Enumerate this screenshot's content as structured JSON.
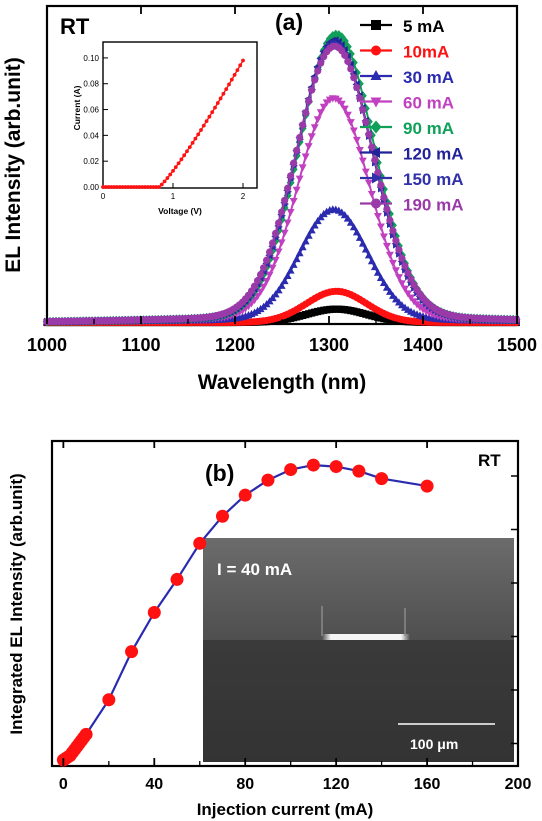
{
  "chart_data": [
    {
      "type": "line",
      "panel_label": "(a)",
      "corner_label": "RT",
      "xlabel": "Wavelength (nm)",
      "ylabel": "EL Intensity (arb.unit)",
      "xlim": [
        1000,
        1500
      ],
      "x_ticks": [
        "1000",
        "1100",
        "1200",
        "1300",
        "1400",
        "1500"
      ],
      "y_ticks_labeled": false,
      "ylim": [
        0,
        1.07
      ],
      "legend_position": "top-right",
      "series": [
        {
          "name": "5 mA",
          "color": "#000000",
          "marker": "square",
          "peak": 0.045,
          "center": 1308,
          "sigma": 32,
          "wing": 0.0
        },
        {
          "name": "10mA",
          "color": "#ff1111",
          "marker": "circle",
          "peak": 0.105,
          "center": 1308,
          "sigma": 32,
          "wing": 0.0
        },
        {
          "name": "30 mA",
          "color": "#2b2bb0",
          "marker": "triangle-up",
          "peak": 0.37,
          "center": 1305,
          "sigma": 36,
          "wing": 0.01
        },
        {
          "name": "60 mA",
          "color": "#c040c0",
          "marker": "triangle-down",
          "peak": 0.74,
          "center": 1305,
          "sigma": 38,
          "wing": 0.015
        },
        {
          "name": "90 mA",
          "color": "#11a05a",
          "marker": "diamond",
          "peak": 0.95,
          "center": 1308,
          "sigma": 40,
          "wing": 0.02
        },
        {
          "name": "120 mA",
          "color": "#22229a",
          "marker": "triangle-left",
          "peak": 0.93,
          "center": 1306,
          "sigma": 40,
          "wing": 0.02
        },
        {
          "name": "150 mA",
          "color": "#3030a8",
          "marker": "triangle-right",
          "peak": 0.92,
          "center": 1306,
          "sigma": 40,
          "wing": 0.02
        },
        {
          "name": "190 mA",
          "color": "#9a3aa8",
          "marker": "circle",
          "peak": 0.91,
          "center": 1306,
          "sigma": 41,
          "wing": 0.02
        }
      ],
      "inset": {
        "type": "line",
        "xlabel": "Voltage (V)",
        "ylabel": "Current (A)",
        "xlim": [
          0,
          2.2
        ],
        "ylim": [
          0,
          0.11
        ],
        "x_ticks": [
          "0",
          "1",
          "2"
        ],
        "y_ticks": [
          "0.00",
          "0.02",
          "0.04",
          "0.06",
          "0.08",
          "0.10"
        ],
        "color": "#ff1111",
        "turn_on_voltage": 0.8,
        "end_point": [
          2.0,
          0.098
        ]
      }
    },
    {
      "type": "line",
      "panel_label": "(b)",
      "corner_label": "RT",
      "xlabel": "Injection current (mA)",
      "ylabel": "Integrated EL Intensity (arb.unit)",
      "xlim": [
        -5,
        200
      ],
      "x_ticks": [
        "0",
        "40",
        "80",
        "120",
        "160",
        "200"
      ],
      "y_ticks_labeled": false,
      "ylim": [
        0,
        1.08
      ],
      "line_color": "#2b2bb0",
      "marker_color": "#ff1111",
      "x": [
        0,
        1,
        2,
        3,
        4,
        5,
        6,
        7,
        8,
        9,
        10,
        20,
        30,
        40,
        50,
        60,
        70,
        80,
        90,
        100,
        110,
        120,
        130,
        140,
        160
      ],
      "y": [
        0.02,
        0.025,
        0.03,
        0.035,
        0.045,
        0.055,
        0.065,
        0.075,
        0.085,
        0.095,
        0.105,
        0.22,
        0.38,
        0.51,
        0.62,
        0.74,
        0.83,
        0.9,
        0.95,
        0.985,
        1.0,
        0.995,
        0.98,
        0.955,
        0.93
      ],
      "inset_image": {
        "caption": "I =  40  mA",
        "scalebar_label": "100  μm"
      }
    }
  ]
}
